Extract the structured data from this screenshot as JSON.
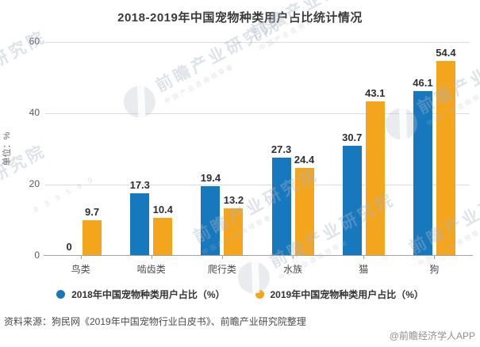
{
  "chart_data": {
    "type": "bar",
    "title": "2018-2019年中国宠物种类用户占比统计情况",
    "categories": [
      "鸟类",
      "啮齿类",
      "爬行类",
      "水族",
      "猫",
      "狗"
    ],
    "series": [
      {
        "name": "2018年中国宠物种类用户占比（%）",
        "color": "#1878BE",
        "values": [
          0,
          17.3,
          19.4,
          27.3,
          30.7,
          46.1
        ]
      },
      {
        "name": "2019年中国宠物种类用户占比（%）",
        "color": "#F3A51D",
        "values": [
          9.7,
          10.4,
          13.2,
          24.4,
          43.1,
          54.4
        ]
      }
    ],
    "xlabel": "",
    "ylabel": "单位：%",
    "ylim": [
      0,
      60
    ],
    "yticks": [
      0,
      20,
      40,
      60
    ],
    "grid": true,
    "legend_position": "bottom"
  },
  "footer": {
    "source": "资料来源：狗民网《2019年中国宠物行业白皮书》、前瞻产业研究院整理",
    "credit": "@前瞻经济学人APP"
  },
  "watermark": {
    "brand": "前瞻产业研究院",
    "tagline": "中国产业咨询领导者",
    "digits": "8 3 9 5 9 9",
    "logo": "qianzhan-logo"
  },
  "colors": {
    "series_2018": "#1878BE",
    "series_2019": "#F3A51D",
    "grid": "#DCDCDC",
    "axis": "#A3A3A3",
    "title_text": "#3A3A3A",
    "label_text": "#2E2E2E"
  }
}
